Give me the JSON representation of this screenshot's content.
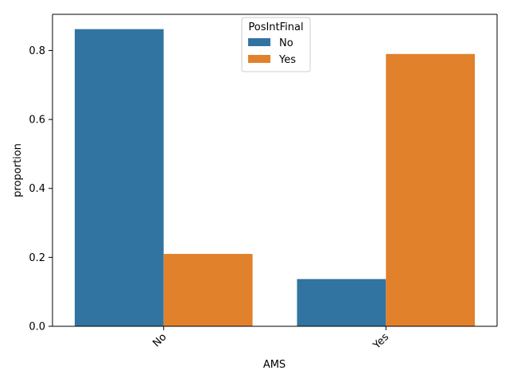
{
  "chart_data": {
    "type": "bar",
    "xlabel": "AMS",
    "ylabel": "proportion",
    "categories": [
      "No",
      "Yes"
    ],
    "series": [
      {
        "name": "No",
        "values": [
          0.862,
          0.137
        ],
        "color": "#3274a1"
      },
      {
        "name": "Yes",
        "values": [
          0.21,
          0.79
        ],
        "color": "#e1812c"
      }
    ],
    "ylim": [
      0,
      0.905
    ],
    "yticks": [
      {
        "value": 0.0,
        "label": "0.0"
      },
      {
        "value": 0.2,
        "label": "0.2"
      },
      {
        "value": 0.4,
        "label": "0.4"
      },
      {
        "value": 0.6,
        "label": "0.6"
      },
      {
        "value": 0.8,
        "label": "0.8"
      }
    ],
    "legend": {
      "title": "PosIntFinal",
      "placement": "top-center"
    },
    "grid": false
  }
}
